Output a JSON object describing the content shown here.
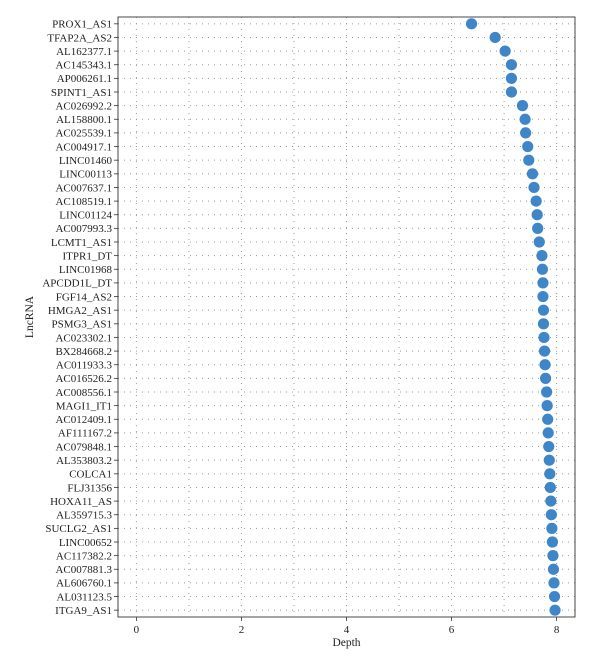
{
  "chart_data": {
    "type": "scatter",
    "xlabel": "Depth",
    "ylabel": "LncRNA",
    "xlim": [
      -0.35,
      8.35
    ],
    "xticks": [
      0,
      2,
      4,
      6,
      8
    ],
    "grid": "dotted",
    "marker_color": "#3f86c8",
    "categories": [
      "PROX1_AS1",
      "TFAP2A_AS2",
      "AL162377.1",
      "AC145343.1",
      "AP006261.1",
      "SPINT1_AS1",
      "AC026992.2",
      "AL158800.1",
      "AC025539.1",
      "AC004917.1",
      "LINC01460",
      "LINC00113",
      "AC007637.1",
      "AC108519.1",
      "LINC01124",
      "AC007993.3",
      "LCMT1_AS1",
      "ITPR1_DT",
      "LINC01968",
      "APCDD1L_DT",
      "FGF14_AS2",
      "HMGA2_AS1",
      "PSMG3_AS1",
      "AC023302.1",
      "BX284668.2",
      "AC011933.3",
      "AC016526.2",
      "AC008556.1",
      "MAGI1_IT1",
      "AC012409.1",
      "AF111167.2",
      "AC079848.1",
      "AL353803.2",
      "COLCA1",
      "FLJ31356",
      "HOXA11_AS",
      "AL359715.3",
      "SUCLG2_AS1",
      "LINC00652",
      "AC117382.2",
      "AC007881.3",
      "AL606760.1",
      "AL031123.5",
      "ITGA9_AS1"
    ],
    "values": [
      6.38,
      6.83,
      7.02,
      7.14,
      7.14,
      7.14,
      7.35,
      7.4,
      7.41,
      7.45,
      7.47,
      7.54,
      7.57,
      7.61,
      7.63,
      7.64,
      7.67,
      7.72,
      7.73,
      7.74,
      7.74,
      7.75,
      7.75,
      7.76,
      7.77,
      7.78,
      7.79,
      7.81,
      7.82,
      7.83,
      7.84,
      7.85,
      7.86,
      7.87,
      7.88,
      7.89,
      7.9,
      7.91,
      7.92,
      7.93,
      7.94,
      7.95,
      7.96,
      7.97
    ]
  }
}
